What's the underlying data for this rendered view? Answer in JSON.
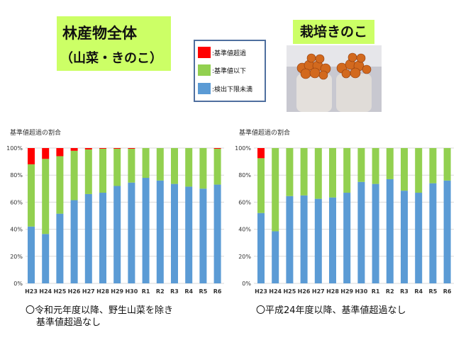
{
  "header": {
    "main_title_line1": "林産物全体",
    "main_title_line2": "（山菜・きのこ）",
    "sub_title": "栽培きのこ"
  },
  "legend": {
    "items": [
      {
        "label": ":基準値超過",
        "color": "#ff0000"
      },
      {
        "label": ":基準値以下",
        "color": "#92d050"
      },
      {
        "label": ":検出下限未満",
        "color": "#5b9bd5"
      }
    ]
  },
  "notes": {
    "left_line1": "〇令和元年度以降、野生山菜を除き",
    "left_line2": "基準値超過なし",
    "right": "〇平成24年度以降、基準値超過なし"
  },
  "chart_data": [
    {
      "type": "bar",
      "stacked": true,
      "title": "基準値超過の割合",
      "categories": [
        "H23",
        "H24",
        "H25",
        "H26",
        "H27",
        "H28",
        "H29",
        "H30",
        "R1",
        "R2",
        "R3",
        "R4",
        "R5",
        "R6"
      ],
      "yticks": [
        "0%",
        "20%",
        "40%",
        "60%",
        "80%",
        "100%"
      ],
      "ylim": [
        0,
        100
      ],
      "grid": true,
      "series": [
        {
          "name": "検出下限未満",
          "color": "#5b9bd5",
          "values": [
            42,
            36.5,
            51.5,
            61.5,
            66,
            67,
            72,
            74.5,
            78,
            76,
            73.5,
            71.5,
            70,
            73
          ]
        },
        {
          "name": "基準値以下",
          "color": "#92d050",
          "values": [
            46,
            55.5,
            42.5,
            36.5,
            33,
            32.5,
            27.5,
            25,
            22,
            24,
            26.5,
            28.5,
            30,
            26.5
          ]
        },
        {
          "name": "基準値超過",
          "color": "#ff0000",
          "values": [
            12,
            8,
            6,
            2,
            1,
            0.5,
            0.5,
            0.5,
            0,
            0,
            0,
            0,
            0,
            0.5
          ]
        }
      ]
    },
    {
      "type": "bar",
      "stacked": true,
      "title": "基準値超過の割合",
      "categories": [
        "H23",
        "H24",
        "H25",
        "H26",
        "H27",
        "H28",
        "H29",
        "H30",
        "R1",
        "R2",
        "R3",
        "R4",
        "R5",
        "R6"
      ],
      "yticks": [
        "0%",
        "20%",
        "40%",
        "60%",
        "80%",
        "100%"
      ],
      "ylim": [
        0,
        100
      ],
      "grid": true,
      "series": [
        {
          "name": "検出下限未満",
          "color": "#5b9bd5",
          "values": [
            52,
            38.5,
            64.5,
            65,
            62.5,
            63.5,
            67,
            75,
            73.5,
            77,
            68.5,
            67,
            74,
            76
          ]
        },
        {
          "name": "基準値以下",
          "color": "#92d050",
          "values": [
            40.5,
            61.5,
            35.5,
            35,
            37.5,
            36.5,
            33,
            25,
            26.5,
            23,
            31.5,
            33,
            26,
            24
          ]
        },
        {
          "name": "基準値超過",
          "color": "#ff0000",
          "values": [
            7.5,
            0,
            0,
            0,
            0,
            0,
            0,
            0,
            0,
            0,
            0,
            0,
            0,
            0
          ]
        }
      ]
    }
  ]
}
